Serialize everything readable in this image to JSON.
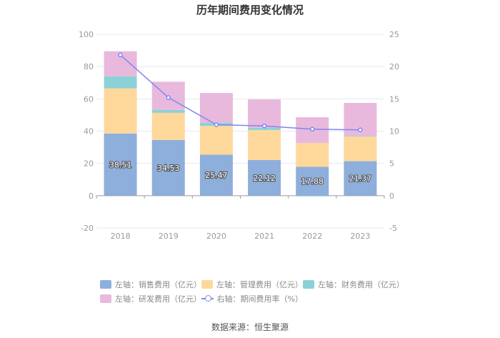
{
  "chart_data": {
    "type": "bar",
    "stacked": true,
    "title": "历年期间费用变化情况",
    "categories": [
      "2018",
      "2019",
      "2020",
      "2021",
      "2022",
      "2023"
    ],
    "series": [
      {
        "name": "左轴：销售费用（亿元）",
        "axis": "left",
        "color": "#8eaedc",
        "values": [
          38.51,
          34.53,
          25.47,
          22.12,
          17.88,
          21.37
        ],
        "labels": [
          "38.51",
          "34.53",
          "25.47",
          "22.12",
          "17.88",
          "21.37"
        ]
      },
      {
        "name": "左轴：管理费用（亿元）",
        "axis": "left",
        "color": "#fdd89a",
        "values": [
          28.0,
          16.8,
          17.8,
          18.6,
          14.7,
          15.3
        ]
      },
      {
        "name": "左轴：财务费用（亿元）",
        "axis": "left",
        "color": "#8ad2d8",
        "values": [
          7.5,
          1.8,
          1.8,
          1.3,
          -0.4,
          0.3
        ]
      },
      {
        "name": "左轴：研发费用（亿元）",
        "axis": "left",
        "color": "#e8b9dc",
        "values": [
          15.5,
          17.5,
          18.6,
          17.6,
          16.0,
          20.5
        ]
      }
    ],
    "line": {
      "name": "右轴：期间费用率（%）",
      "axis": "right",
      "color": "#8085f1",
      "values": [
        21.8,
        15.2,
        11.0,
        10.8,
        10.3,
        10.2
      ]
    },
    "left_axis": {
      "min": -20,
      "max": 100,
      "ticks": [
        "-20",
        "0",
        "20",
        "40",
        "60",
        "80",
        "100"
      ]
    },
    "right_axis": {
      "min": -5,
      "max": 25,
      "ticks": [
        "-5",
        "0",
        "5",
        "10",
        "15",
        "20",
        "25"
      ]
    }
  },
  "source_text": "数据来源：恒生聚源"
}
